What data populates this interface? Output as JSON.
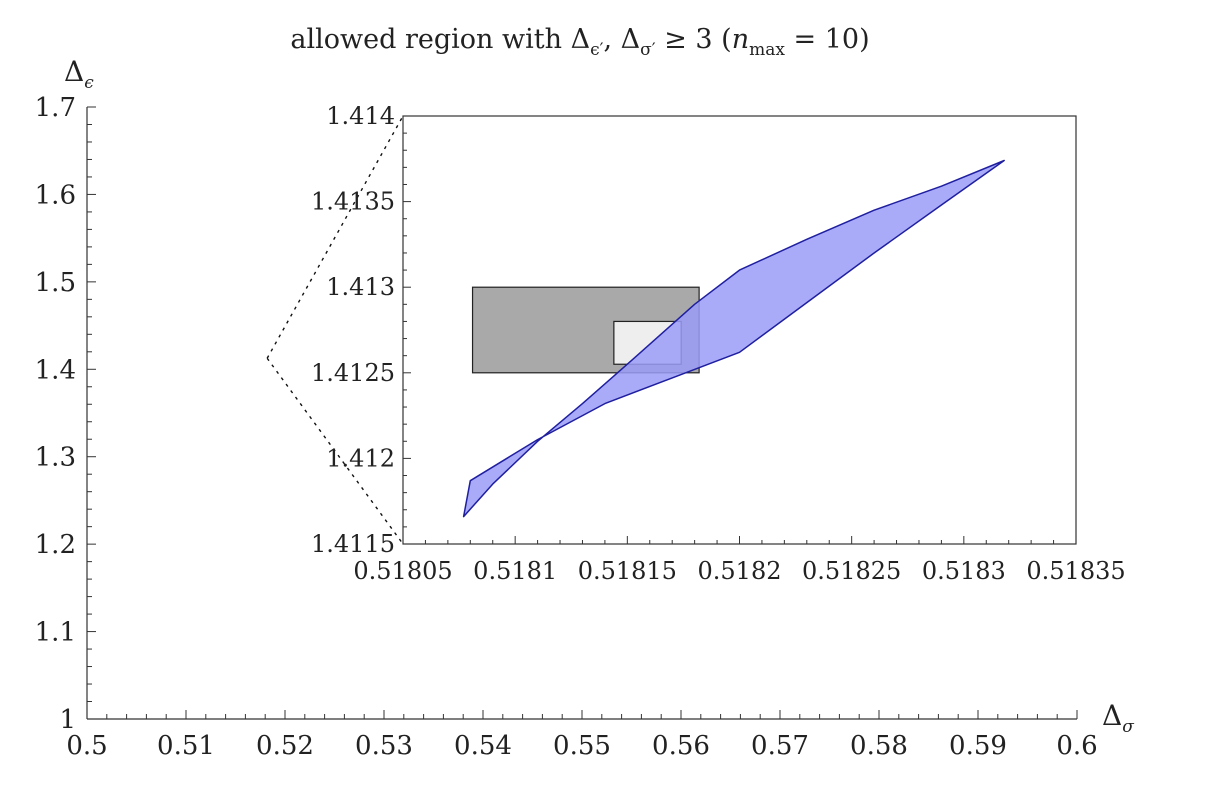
{
  "chart_data": {
    "type": "area",
    "title": {
      "pre": "allowed region with ",
      "delta1": "Δ",
      "sub1": "ϵ′",
      "comma": ", ",
      "delta2": "Δ",
      "sub2": "σ′",
      "rel": " ≥ 3 (",
      "n": "n",
      "nsub": "max",
      "tail": " = 10)"
    },
    "xlabel": {
      "main": "Δ",
      "sub": "σ"
    },
    "ylabel": {
      "main": "Δ",
      "sub": "ϵ"
    },
    "main": {
      "xlim": [
        0.5,
        0.6
      ],
      "ylim": [
        1.0,
        1.7
      ],
      "xticks": [
        "0.5",
        "0.51",
        "0.52",
        "0.53",
        "0.54",
        "0.55",
        "0.56",
        "0.57",
        "0.58",
        "0.59",
        "0.6"
      ],
      "yticks": [
        "1",
        "1.1",
        "1.2",
        "1.3",
        "1.4",
        "1.5",
        "1.6",
        "1.7"
      ],
      "zoom_point": [
        0.5182,
        1.4126
      ]
    },
    "inset": {
      "xlim": [
        0.51805,
        0.51835
      ],
      "ylim": [
        1.4115,
        1.414
      ],
      "xticks": [
        "0.51805",
        "0.5181",
        "0.51815",
        "0.5182",
        "0.51825",
        "0.5183",
        "0.51835"
      ],
      "yticks": [
        "1.4115",
        "1.412",
        "1.4125",
        "1.413",
        "1.4135",
        "1.414"
      ],
      "region": {
        "upper": [
          [
            0.518077,
            1.41166
          ],
          [
            0.51809,
            1.41185
          ],
          [
            0.51811,
            1.4121
          ],
          [
            0.51813,
            1.41232
          ],
          [
            0.51815,
            1.41255
          ],
          [
            0.51818,
            1.4129
          ],
          [
            0.5182,
            1.4131
          ],
          [
            0.51823,
            1.41328
          ],
          [
            0.51826,
            1.41345
          ],
          [
            0.51829,
            1.41359
          ],
          [
            0.518318,
            1.41374
          ]
        ],
        "lower": [
          [
            0.518318,
            1.41374
          ],
          [
            0.51829,
            1.41348
          ],
          [
            0.51826,
            1.4132
          ],
          [
            0.51823,
            1.41291
          ],
          [
            0.5182,
            1.41262
          ],
          [
            0.51817,
            1.41247
          ],
          [
            0.51814,
            1.41232
          ],
          [
            0.51811,
            1.41211
          ],
          [
            0.51808,
            1.41187
          ],
          [
            0.518077,
            1.41166
          ]
        ],
        "fill": "#9a9cf8",
        "stroke": "#1f1fa0"
      },
      "rect_dark": {
        "x": [
          0.518081,
          0.518182
        ],
        "y": [
          1.4125,
          1.413
        ],
        "fill": "#707070"
      },
      "rect_light": {
        "x": [
          0.518144,
          0.518174
        ],
        "y": [
          1.41255,
          1.4128
        ],
        "fill": "#ffffff"
      }
    }
  }
}
